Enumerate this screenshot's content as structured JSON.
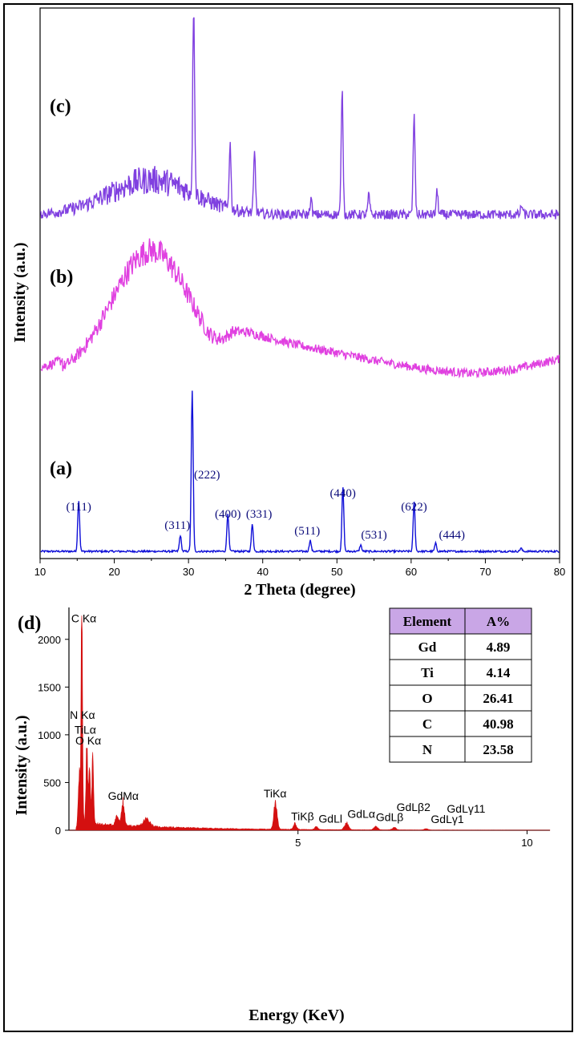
{
  "chart_data": [
    {
      "type": "line",
      "panel": "xrd",
      "xlabel": "2 Theta (degree)",
      "ylabel": "Intensity (a.u.)",
      "xlim": [
        10,
        80
      ],
      "x_ticks": [
        "10",
        "20",
        "30",
        "40",
        "50",
        "60",
        "70",
        "80"
      ],
      "grid": false,
      "colors": {
        "a": "#1010d8",
        "b": "#e040e0",
        "c": "#8040e0",
        "peak_label": "#0a0a7a"
      },
      "series": [
        {
          "name": "(a)",
          "baseline": 0.02,
          "noise": 0.006,
          "peaks": [
            {
              "x": 15.2,
              "h": 0.32
            },
            {
              "x": 28.9,
              "h": 0.1
            },
            {
              "x": 30.5,
              "h": 1.0
            },
            {
              "x": 35.3,
              "h": 0.24
            },
            {
              "x": 38.6,
              "h": 0.17
            },
            {
              "x": 46.4,
              "h": 0.07
            },
            {
              "x": 50.8,
              "h": 0.4
            },
            {
              "x": 53.2,
              "h": 0.04
            },
            {
              "x": 60.4,
              "h": 0.31
            },
            {
              "x": 63.3,
              "h": 0.05
            },
            {
              "x": 74.8,
              "h": 0.02
            }
          ],
          "peak_labels": [
            {
              "x": 15.2,
              "text": "(111)"
            },
            {
              "x": 28.5,
              "text": "(311)"
            },
            {
              "x": 32.5,
              "text": "(222)"
            },
            {
              "x": 35.3,
              "text": "(400)"
            },
            {
              "x": 39.5,
              "text": "(331)"
            },
            {
              "x": 46.0,
              "text": "(511)"
            },
            {
              "x": 50.8,
              "text": "(440)"
            },
            {
              "x": 55.0,
              "text": "(531)"
            },
            {
              "x": 60.4,
              "text": "(622)"
            },
            {
              "x": 65.5,
              "text": "(444)"
            }
          ]
        },
        {
          "name": "(b)",
          "baseline": 0.0,
          "noise": 0.03,
          "hump": {
            "x": 25,
            "h": 0.85,
            "w": 7.5
          },
          "tail": [
            0.32,
            0.3,
            0.22,
            0.16,
            0.1,
            0.05,
            0.02,
            0.05,
            0.12
          ]
        },
        {
          "name": "(c)",
          "baseline": 0.03,
          "noise": 0.025,
          "hump": {
            "x": 25,
            "h": 0.18,
            "w": 8
          },
          "peaks": [
            {
              "x": 30.7,
              "h": 1.0
            },
            {
              "x": 35.6,
              "h": 0.34
            },
            {
              "x": 38.9,
              "h": 0.31
            },
            {
              "x": 46.5,
              "h": 0.08
            },
            {
              "x": 50.7,
              "h": 0.65
            },
            {
              "x": 54.3,
              "h": 0.1
            },
            {
              "x": 60.4,
              "h": 0.52
            },
            {
              "x": 63.5,
              "h": 0.12
            },
            {
              "x": 74.9,
              "h": 0.05
            }
          ]
        }
      ]
    },
    {
      "type": "bar",
      "panel": "eds",
      "label": "(d)",
      "xlabel": "Energy (KeV)",
      "ylabel": "Intensity (a.u.)",
      "xlim": [
        0,
        10.5
      ],
      "ylim": [
        0,
        2250
      ],
      "x_ticks": [
        {
          "v": 5,
          "t": "5"
        },
        {
          "v": 10,
          "t": "10"
        }
      ],
      "y_ticks": [
        {
          "v": 0,
          "t": "0"
        },
        {
          "v": 500,
          "t": "500"
        },
        {
          "v": 1000,
          "t": "1000"
        },
        {
          "v": 1500,
          "t": "1500"
        },
        {
          "v": 2000,
          "t": "2000"
        }
      ],
      "color": "#d41010",
      "peaks": [
        {
          "x": 0.28,
          "h": 2150,
          "w": 0.025
        },
        {
          "x": 0.22,
          "h": 550,
          "w": 0.03
        },
        {
          "x": 0.39,
          "h": 900,
          "w": 0.025
        },
        {
          "x": 0.45,
          "h": 520,
          "w": 0.03
        },
        {
          "x": 0.52,
          "h": 820,
          "w": 0.025
        },
        {
          "x": 1.18,
          "h": 270,
          "w": 0.04
        },
        {
          "x": 1.05,
          "h": 100,
          "w": 0.05
        },
        {
          "x": 1.7,
          "h": 80,
          "w": 0.1
        },
        {
          "x": 4.51,
          "h": 290,
          "w": 0.05
        },
        {
          "x": 4.93,
          "h": 60,
          "w": 0.05
        },
        {
          "x": 5.4,
          "h": 30,
          "w": 0.05
        },
        {
          "x": 6.06,
          "h": 70,
          "w": 0.06
        },
        {
          "x": 6.7,
          "h": 35,
          "w": 0.06
        },
        {
          "x": 7.1,
          "h": 25,
          "w": 0.06
        },
        {
          "x": 7.8,
          "h": 15,
          "w": 0.06
        }
      ],
      "background": 70,
      "annotations": [
        {
          "x": 0.05,
          "y": 2180,
          "text": "C Kα"
        },
        {
          "x": 0.02,
          "y": 1165,
          "text": "N Kα"
        },
        {
          "x": 0.12,
          "y": 1010,
          "text": "TiLα"
        },
        {
          "x": 0.14,
          "y": 900,
          "text": "O Kα"
        },
        {
          "x": 0.85,
          "y": 320,
          "text": "GdMα"
        },
        {
          "x": 4.25,
          "y": 345,
          "text": "TiKα"
        },
        {
          "x": 4.85,
          "y": 105,
          "text": "TiKβ"
        },
        {
          "x": 5.45,
          "y": 80,
          "text": "GdLl"
        },
        {
          "x": 6.08,
          "y": 130,
          "text": "GdLα"
        },
        {
          "x": 6.7,
          "y": 95,
          "text": "GdLβ"
        },
        {
          "x": 7.15,
          "y": 200,
          "text": "GdLβ2"
        },
        {
          "x": 7.9,
          "y": 75,
          "text": "GdLγ1"
        },
        {
          "x": 8.25,
          "y": 185,
          "text": "GdLγ11"
        }
      ],
      "table": {
        "headers": [
          "Element",
          "A%"
        ],
        "header_color": "#c9a6e6",
        "rows": [
          [
            "Gd",
            "4.89"
          ],
          [
            "Ti",
            "4.14"
          ],
          [
            "O",
            "26.41"
          ],
          [
            "C",
            "40.98"
          ],
          [
            "N",
            "23.58"
          ]
        ]
      }
    }
  ]
}
